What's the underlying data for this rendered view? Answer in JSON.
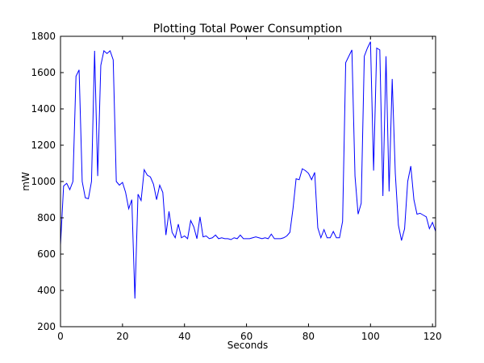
{
  "chart_data": {
    "type": "line",
    "title": "Plotting Total Power Consumption",
    "x_label": "Seconds",
    "y_label": "mW",
    "x": [
      0,
      1,
      2,
      3,
      4,
      5,
      6,
      7,
      8,
      9,
      10,
      11,
      12,
      13,
      14,
      15,
      16,
      17,
      18,
      19,
      20,
      21,
      22,
      23,
      24,
      25,
      26,
      27,
      28,
      29,
      30,
      31,
      32,
      33,
      34,
      35,
      36,
      37,
      38,
      39,
      40,
      41,
      42,
      43,
      44,
      45,
      46,
      47,
      48,
      49,
      50,
      51,
      52,
      53,
      54,
      55,
      56,
      57,
      58,
      59,
      60,
      61,
      62,
      63,
      64,
      65,
      66,
      67,
      68,
      69,
      70,
      71,
      72,
      73,
      74,
      75,
      76,
      77,
      78,
      79,
      80,
      81,
      82,
      83,
      84,
      85,
      86,
      87,
      88,
      89,
      90,
      91,
      92,
      93,
      94,
      95,
      96,
      97,
      98,
      99,
      100,
      101,
      102,
      103,
      104,
      105,
      106,
      107,
      108,
      109,
      110,
      111,
      112,
      113,
      114,
      115,
      116,
      117,
      118,
      119,
      120,
      121
    ],
    "series": [
      {
        "name": "power",
        "color": "#0000ff",
        "values": [
          650,
          975,
          990,
          955,
          1000,
          1580,
          1615,
          1000,
          910,
          905,
          1000,
          1720,
          1030,
          1640,
          1720,
          1705,
          1720,
          1670,
          1000,
          980,
          995,
          940,
          850,
          900,
          355,
          930,
          895,
          1065,
          1035,
          1025,
          985,
          900,
          980,
          940,
          705,
          835,
          720,
          690,
          765,
          690,
          700,
          685,
          785,
          750,
          685,
          805,
          695,
          700,
          685,
          690,
          705,
          685,
          690,
          685,
          685,
          680,
          690,
          685,
          705,
          685,
          685,
          685,
          690,
          695,
          690,
          685,
          690,
          685,
          710,
          685,
          685,
          685,
          690,
          700,
          720,
          850,
          1015,
          1010,
          1070,
          1060,
          1045,
          1010,
          1050,
          745,
          690,
          735,
          690,
          690,
          725,
          690,
          690,
          780,
          1655,
          1690,
          1725,
          1030,
          820,
          880,
          1690,
          1735,
          1770,
          1060,
          1735,
          1725,
          920,
          1690,
          945,
          1565,
          1045,
          760,
          675,
          740,
          1000,
          1085,
          900,
          820,
          825,
          815,
          805,
          740,
          775,
          725
        ]
      }
    ],
    "xlim": [
      0,
      121
    ],
    "ylim": [
      200,
      1800
    ],
    "xticks": [
      0,
      20,
      40,
      60,
      80,
      100,
      120
    ],
    "yticks": [
      200,
      400,
      600,
      800,
      1000,
      1200,
      1400,
      1600,
      1800
    ]
  }
}
